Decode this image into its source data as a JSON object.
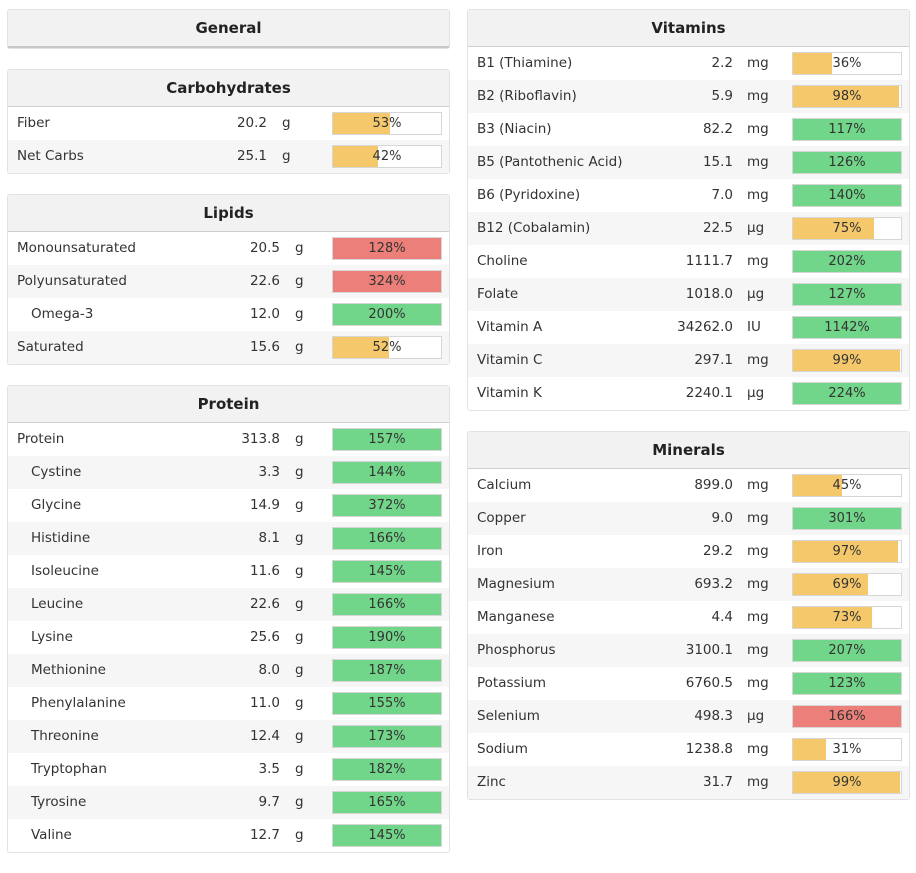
{
  "colors": {
    "green": "#72d68a",
    "yellow": "#f5c96b",
    "red": "#ec7f79"
  },
  "general": {
    "title": "General"
  },
  "carbohydrates": {
    "title": "Carbohydrates",
    "rows": [
      {
        "name": "Fiber",
        "amount": "20.2",
        "unit": "g",
        "pct": "53%",
        "pct_value": 53,
        "color": "yellow",
        "sub": false
      },
      {
        "name": "Net Carbs",
        "amount": "25.1",
        "unit": "g",
        "pct": "42%",
        "pct_value": 42,
        "color": "yellow",
        "sub": false
      }
    ]
  },
  "lipids": {
    "title": "Lipids",
    "rows": [
      {
        "name": "Monounsaturated",
        "amount": "20.5",
        "unit": "g",
        "pct": "128%",
        "pct_value": 128,
        "color": "red",
        "sub": false
      },
      {
        "name": "Polyunsaturated",
        "amount": "22.6",
        "unit": "g",
        "pct": "324%",
        "pct_value": 324,
        "color": "red",
        "sub": false
      },
      {
        "name": "Omega-3",
        "amount": "12.0",
        "unit": "g",
        "pct": "200%",
        "pct_value": 200,
        "color": "green",
        "sub": true
      },
      {
        "name": "Saturated",
        "amount": "15.6",
        "unit": "g",
        "pct": "52%",
        "pct_value": 52,
        "color": "yellow",
        "sub": false
      }
    ]
  },
  "protein": {
    "title": "Protein",
    "rows": [
      {
        "name": "Protein",
        "amount": "313.8",
        "unit": "g",
        "pct": "157%",
        "pct_value": 157,
        "color": "green",
        "sub": false
      },
      {
        "name": "Cystine",
        "amount": "3.3",
        "unit": "g",
        "pct": "144%",
        "pct_value": 144,
        "color": "green",
        "sub": true
      },
      {
        "name": "Glycine",
        "amount": "14.9",
        "unit": "g",
        "pct": "372%",
        "pct_value": 372,
        "color": "green",
        "sub": true
      },
      {
        "name": "Histidine",
        "amount": "8.1",
        "unit": "g",
        "pct": "166%",
        "pct_value": 166,
        "color": "green",
        "sub": true
      },
      {
        "name": "Isoleucine",
        "amount": "11.6",
        "unit": "g",
        "pct": "145%",
        "pct_value": 145,
        "color": "green",
        "sub": true
      },
      {
        "name": "Leucine",
        "amount": "22.6",
        "unit": "g",
        "pct": "166%",
        "pct_value": 166,
        "color": "green",
        "sub": true
      },
      {
        "name": "Lysine",
        "amount": "25.6",
        "unit": "g",
        "pct": "190%",
        "pct_value": 190,
        "color": "green",
        "sub": true
      },
      {
        "name": "Methionine",
        "amount": "8.0",
        "unit": "g",
        "pct": "187%",
        "pct_value": 187,
        "color": "green",
        "sub": true
      },
      {
        "name": "Phenylalanine",
        "amount": "11.0",
        "unit": "g",
        "pct": "155%",
        "pct_value": 155,
        "color": "green",
        "sub": true
      },
      {
        "name": "Threonine",
        "amount": "12.4",
        "unit": "g",
        "pct": "173%",
        "pct_value": 173,
        "color": "green",
        "sub": true
      },
      {
        "name": "Tryptophan",
        "amount": "3.5",
        "unit": "g",
        "pct": "182%",
        "pct_value": 182,
        "color": "green",
        "sub": true
      },
      {
        "name": "Tyrosine",
        "amount": "9.7",
        "unit": "g",
        "pct": "165%",
        "pct_value": 165,
        "color": "green",
        "sub": true
      },
      {
        "name": "Valine",
        "amount": "12.7",
        "unit": "g",
        "pct": "145%",
        "pct_value": 145,
        "color": "green",
        "sub": true
      }
    ]
  },
  "vitamins": {
    "title": "Vitamins",
    "rows": [
      {
        "name": "B1 (Thiamine)",
        "amount": "2.2",
        "unit": "mg",
        "pct": "36%",
        "pct_value": 36,
        "color": "yellow",
        "sub": false
      },
      {
        "name": "B2 (Riboflavin)",
        "amount": "5.9",
        "unit": "mg",
        "pct": "98%",
        "pct_value": 98,
        "color": "yellow",
        "sub": false
      },
      {
        "name": "B3 (Niacin)",
        "amount": "82.2",
        "unit": "mg",
        "pct": "117%",
        "pct_value": 117,
        "color": "green",
        "sub": false
      },
      {
        "name": "B5 (Pantothenic Acid)",
        "amount": "15.1",
        "unit": "mg",
        "pct": "126%",
        "pct_value": 126,
        "color": "green",
        "sub": false
      },
      {
        "name": "B6 (Pyridoxine)",
        "amount": "7.0",
        "unit": "mg",
        "pct": "140%",
        "pct_value": 140,
        "color": "green",
        "sub": false
      },
      {
        "name": "B12 (Cobalamin)",
        "amount": "22.5",
        "unit": "µg",
        "pct": "75%",
        "pct_value": 75,
        "color": "yellow",
        "sub": false
      },
      {
        "name": "Choline",
        "amount": "1111.7",
        "unit": "mg",
        "pct": "202%",
        "pct_value": 202,
        "color": "green",
        "sub": false
      },
      {
        "name": "Folate",
        "amount": "1018.0",
        "unit": "µg",
        "pct": "127%",
        "pct_value": 127,
        "color": "green",
        "sub": false
      },
      {
        "name": "Vitamin A",
        "amount": "34262.0",
        "unit": "IU",
        "pct": "1142%",
        "pct_value": 1142,
        "color": "green",
        "sub": false
      },
      {
        "name": "Vitamin C",
        "amount": "297.1",
        "unit": "mg",
        "pct": "99%",
        "pct_value": 99,
        "color": "yellow",
        "sub": false
      },
      {
        "name": "Vitamin K",
        "amount": "2240.1",
        "unit": "µg",
        "pct": "224%",
        "pct_value": 224,
        "color": "green",
        "sub": false
      }
    ]
  },
  "minerals": {
    "title": "Minerals",
    "rows": [
      {
        "name": "Calcium",
        "amount": "899.0",
        "unit": "mg",
        "pct": "45%",
        "pct_value": 45,
        "color": "yellow",
        "sub": false
      },
      {
        "name": "Copper",
        "amount": "9.0",
        "unit": "mg",
        "pct": "301%",
        "pct_value": 301,
        "color": "green",
        "sub": false
      },
      {
        "name": "Iron",
        "amount": "29.2",
        "unit": "mg",
        "pct": "97%",
        "pct_value": 97,
        "color": "yellow",
        "sub": false
      },
      {
        "name": "Magnesium",
        "amount": "693.2",
        "unit": "mg",
        "pct": "69%",
        "pct_value": 69,
        "color": "yellow",
        "sub": false
      },
      {
        "name": "Manganese",
        "amount": "4.4",
        "unit": "mg",
        "pct": "73%",
        "pct_value": 73,
        "color": "yellow",
        "sub": false
      },
      {
        "name": "Phosphorus",
        "amount": "3100.1",
        "unit": "mg",
        "pct": "207%",
        "pct_value": 207,
        "color": "green",
        "sub": false
      },
      {
        "name": "Potassium",
        "amount": "6760.5",
        "unit": "mg",
        "pct": "123%",
        "pct_value": 123,
        "color": "green",
        "sub": false
      },
      {
        "name": "Selenium",
        "amount": "498.3",
        "unit": "µg",
        "pct": "166%",
        "pct_value": 166,
        "color": "red",
        "sub": false
      },
      {
        "name": "Sodium",
        "amount": "1238.8",
        "unit": "mg",
        "pct": "31%",
        "pct_value": 31,
        "color": "yellow",
        "sub": false
      },
      {
        "name": "Zinc",
        "amount": "31.7",
        "unit": "mg",
        "pct": "99%",
        "pct_value": 99,
        "color": "yellow",
        "sub": false
      }
    ]
  }
}
